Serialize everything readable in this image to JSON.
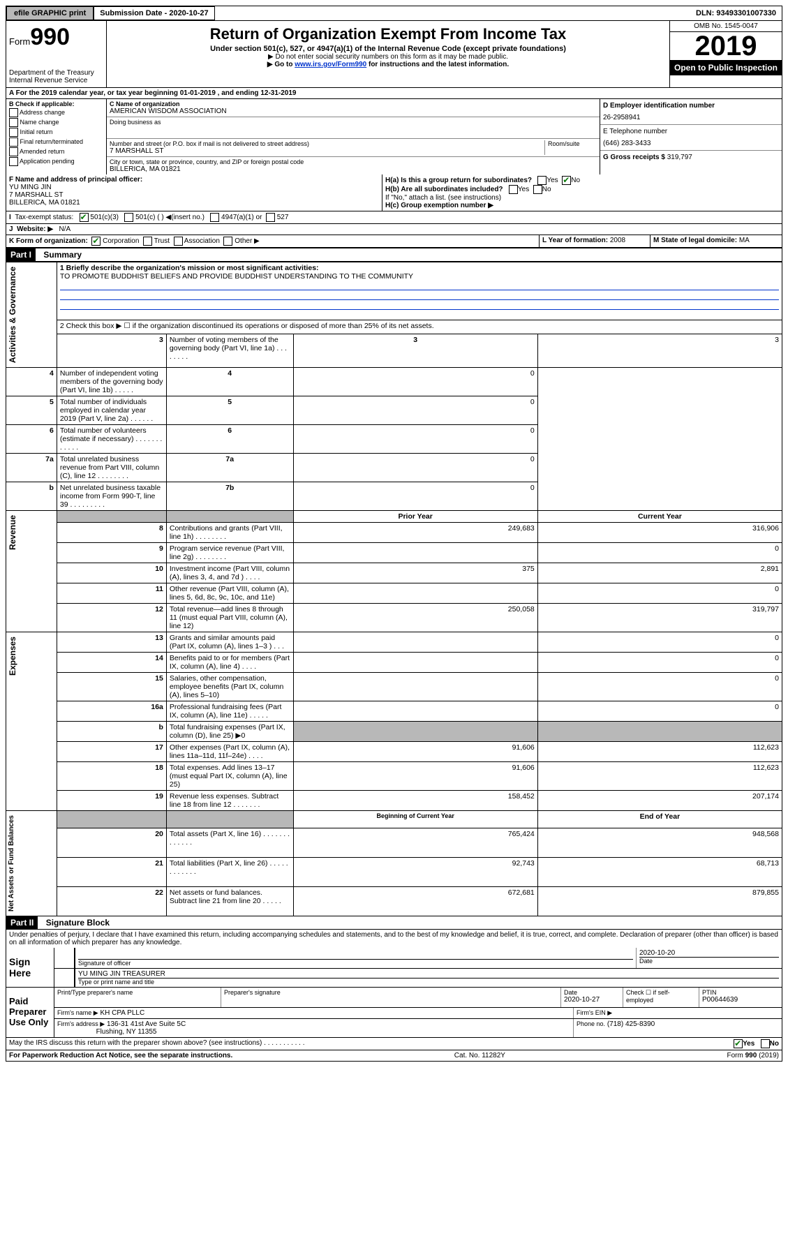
{
  "top": {
    "efile": "efile GRAPHIC print",
    "submission_label": "Submission Date",
    "submission_date": "2020-10-27",
    "dln_label": "DLN:",
    "dln": "93493301007330"
  },
  "header": {
    "form_prefix": "Form",
    "form_number": "990",
    "dept": "Department of the Treasury",
    "irs": "Internal Revenue Service",
    "title": "Return of Organization Exempt From Income Tax",
    "subtitle1": "Under section 501(c), 527, or 4947(a)(1) of the Internal Revenue Code (except private foundations)",
    "subtitle2": "▶ Do not enter social security numbers on this form as it may be made public.",
    "subtitle3_pre": "▶ Go to ",
    "subtitle3_link": "www.irs.gov/Form990",
    "subtitle3_post": " for instructions and the latest information.",
    "omb": "OMB No. 1545-0047",
    "year": "2019",
    "open_public": "Open to Public Inspection"
  },
  "row_a": "A For the 2019 calendar year, or tax year beginning 01-01-2019    , and ending 12-31-2019",
  "box_b": {
    "title": "B Check if applicable:",
    "items": [
      "Address change",
      "Name change",
      "Initial return",
      "Final return/terminated",
      "Amended return",
      "Application pending"
    ]
  },
  "box_c": {
    "name_label": "C Name of organization",
    "name": "AMERICAN WISDOM ASSOCIATION",
    "dba_label": "Doing business as",
    "dba": "",
    "street_label": "Number and street (or P.O. box if mail is not delivered to street address)",
    "room_label": "Room/suite",
    "street": "7 MARSHALL ST",
    "city_label": "City or town, state or province, country, and ZIP or foreign postal code",
    "city": "BILLERICA, MA  01821"
  },
  "box_d": {
    "label": "D Employer identification number",
    "value": "26-2958941"
  },
  "box_e": {
    "label": "E Telephone number",
    "value": "(646) 283-3433"
  },
  "box_g": {
    "label": "G Gross receipts $",
    "value": "319,797"
  },
  "box_f": {
    "label": "F Name and address of principal officer:",
    "name": "YU MING JIN",
    "street": "7 MARSHALL ST",
    "city": "BILLERICA, MA  01821"
  },
  "box_h": {
    "a_label": "H(a)  Is this a group return for subordinates?",
    "a_yes": "Yes",
    "a_no": "No",
    "b_label": "H(b)  Are all subordinates included?",
    "b_note": "If \"No,\" attach a list. (see instructions)",
    "c_label": "H(c)  Group exemption number ▶"
  },
  "box_i": {
    "label": "Tax-exempt status:",
    "opt1": "501(c)(3)",
    "opt2": "501(c) (   ) ◀(insert no.)",
    "opt3": "4947(a)(1) or",
    "opt4": "527"
  },
  "box_j": {
    "label": "Website: ▶",
    "value": "N/A"
  },
  "box_k": {
    "label": "K Form of organization:",
    "opts": [
      "Corporation",
      "Trust",
      "Association",
      "Other ▶"
    ]
  },
  "box_l": {
    "label": "L Year of formation:",
    "value": "2008"
  },
  "box_m": {
    "label": "M State of legal domicile:",
    "value": "MA"
  },
  "part1": {
    "header": "Part I",
    "title": "Summary",
    "sections": {
      "gov": "Activities & Governance",
      "rev": "Revenue",
      "exp": "Expenses",
      "net": "Net Assets or Fund Balances"
    },
    "line1_label": "1  Briefly describe the organization's mission or most significant activities:",
    "line1_text": "TO PROMOTE BUDDHIST BELIEFS AND PROVIDE BUDDHIST UNDERSTANDING TO THE COMMUNITY",
    "line2": "2   Check this box ▶ ☐  if the organization discontinued its operations or disposed of more than 25% of its net assets.",
    "rows_gov": [
      {
        "n": "3",
        "t": "Number of voting members of the governing body (Part VI, line 1a)  .    .    .    .    .    .    .    .",
        "b": "3",
        "v": "3"
      },
      {
        "n": "4",
        "t": "Number of independent voting members of the governing body (Part VI, line 1b)  .    .    .    .    .",
        "b": "4",
        "v": "0"
      },
      {
        "n": "5",
        "t": "Total number of individuals employed in calendar year 2019 (Part V, line 2a)   .    .    .    .    .    .",
        "b": "5",
        "v": "0"
      },
      {
        "n": "6",
        "t": "Total number of volunteers (estimate if necessary)   .    .    .    .    .    .    .    .    .    .    .    .",
        "b": "6",
        "v": "0"
      },
      {
        "n": "7a",
        "t": "Total unrelated business revenue from Part VIII, column (C), line 12   .    .    .    .    .    .    .    .",
        "b": "7a",
        "v": "0"
      },
      {
        "n": "b",
        "t": "Net unrelated business taxable income from Form 990-T, line 39  .    .    .    .    .    .    .    .    .",
        "b": "7b",
        "v": "0"
      }
    ],
    "col_headers": {
      "prior": "Prior Year",
      "current": "Current Year"
    },
    "rows_rev": [
      {
        "n": "8",
        "t": "Contributions and grants (Part VIII, line 1h)   .    .    .    .    .    .    .    .",
        "p": "249,683",
        "c": "316,906"
      },
      {
        "n": "9",
        "t": "Program service revenue (Part VIII, line 2g)   .    .    .    .    .    .    .    .",
        "p": "",
        "c": "0"
      },
      {
        "n": "10",
        "t": "Investment income (Part VIII, column (A), lines 3, 4, and 7d )   .    .    .    .",
        "p": "375",
        "c": "2,891"
      },
      {
        "n": "11",
        "t": "Other revenue (Part VIII, column (A), lines 5, 6d, 8c, 9c, 10c, and 11e)",
        "p": "",
        "c": "0"
      },
      {
        "n": "12",
        "t": "Total revenue—add lines 8 through 11 (must equal Part VIII, column (A), line 12)",
        "p": "250,058",
        "c": "319,797"
      }
    ],
    "rows_exp": [
      {
        "n": "13",
        "t": "Grants and similar amounts paid (Part IX, column (A), lines 1–3 )   .    .    .",
        "p": "",
        "c": "0"
      },
      {
        "n": "14",
        "t": "Benefits paid to or for members (Part IX, column (A), line 4)   .    .    .    .",
        "p": "",
        "c": "0"
      },
      {
        "n": "15",
        "t": "Salaries, other compensation, employee benefits (Part IX, column (A), lines 5–10)",
        "p": "",
        "c": "0"
      },
      {
        "n": "16a",
        "t": "Professional fundraising fees (Part IX, column (A), line 11e)   .    .    .    .    .",
        "p": "",
        "c": "0"
      },
      {
        "n": "b",
        "t": "Total fundraising expenses (Part IX, column (D), line 25) ▶0",
        "p": "SHADE",
        "c": "SHADE"
      },
      {
        "n": "17",
        "t": "Other expenses (Part IX, column (A), lines 11a–11d, 11f–24e)   .    .    .    .",
        "p": "91,606",
        "c": "112,623"
      },
      {
        "n": "18",
        "t": "Total expenses. Add lines 13–17 (must equal Part IX, column (A), line 25)",
        "p": "91,606",
        "c": "112,623"
      },
      {
        "n": "19",
        "t": "Revenue less expenses. Subtract line 18 from line 12   .    .    .    .    .    .    .",
        "p": "158,452",
        "c": "207,174"
      }
    ],
    "col_headers2": {
      "begin": "Beginning of Current Year",
      "end": "End of Year"
    },
    "rows_net": [
      {
        "n": "20",
        "t": "Total assets (Part X, line 16)  .    .    .    .    .    .    .    .    .    .    .    .    .",
        "p": "765,424",
        "c": "948,568"
      },
      {
        "n": "21",
        "t": "Total liabilities (Part X, line 26)  .    .    .    .    .    .    .    .    .    .    .    .",
        "p": "92,743",
        "c": "68,713"
      },
      {
        "n": "22",
        "t": "Net assets or fund balances. Subtract line 21 from line 20   .    .    .    .    .",
        "p": "672,681",
        "c": "879,855"
      }
    ]
  },
  "part2": {
    "header": "Part II",
    "title": "Signature Block",
    "declaration": "Under penalties of perjury, I declare that I have examined this return, including accompanying schedules and statements, and to the best of my knowledge and belief, it is true, correct, and complete. Declaration of preparer (other than officer) is based on all information of which preparer has any knowledge.",
    "sign_here": "Sign Here",
    "sig_officer": "Signature of officer",
    "sig_date": "2020-10-20",
    "date_label": "Date",
    "officer_name": "YU MING JIN TREASURER",
    "type_name": "Type or print name and title",
    "paid_label": "Paid Preparer Use Only",
    "prep_name_label": "Print/Type preparer's name",
    "prep_sig_label": "Preparer's signature",
    "prep_date_label": "Date",
    "prep_date": "2020-10-27",
    "check_self": "Check ☐ if self-employed",
    "ptin_label": "PTIN",
    "ptin": "P00644639",
    "firm_name_label": "Firm's name     ▶",
    "firm_name": "KH CPA PLLC",
    "firm_ein_label": "Firm's EIN ▶",
    "firm_addr_label": "Firm's address ▶",
    "firm_addr1": "136-31 41st Ave Suite 5C",
    "firm_addr2": "Flushing, NY  11355",
    "phone_label": "Phone no.",
    "phone": "(718) 425-8390"
  },
  "discuss": {
    "text": "May the IRS discuss this return with the preparer shown above? (see instructions)   .    .    .    .    .    .    .    .    .    .    .",
    "yes": "Yes",
    "no": "No"
  },
  "footer": {
    "paperwork": "For Paperwork Reduction Act Notice, see the separate instructions.",
    "cat": "Cat. No. 11282Y",
    "form": "Form 990 (2019)"
  }
}
